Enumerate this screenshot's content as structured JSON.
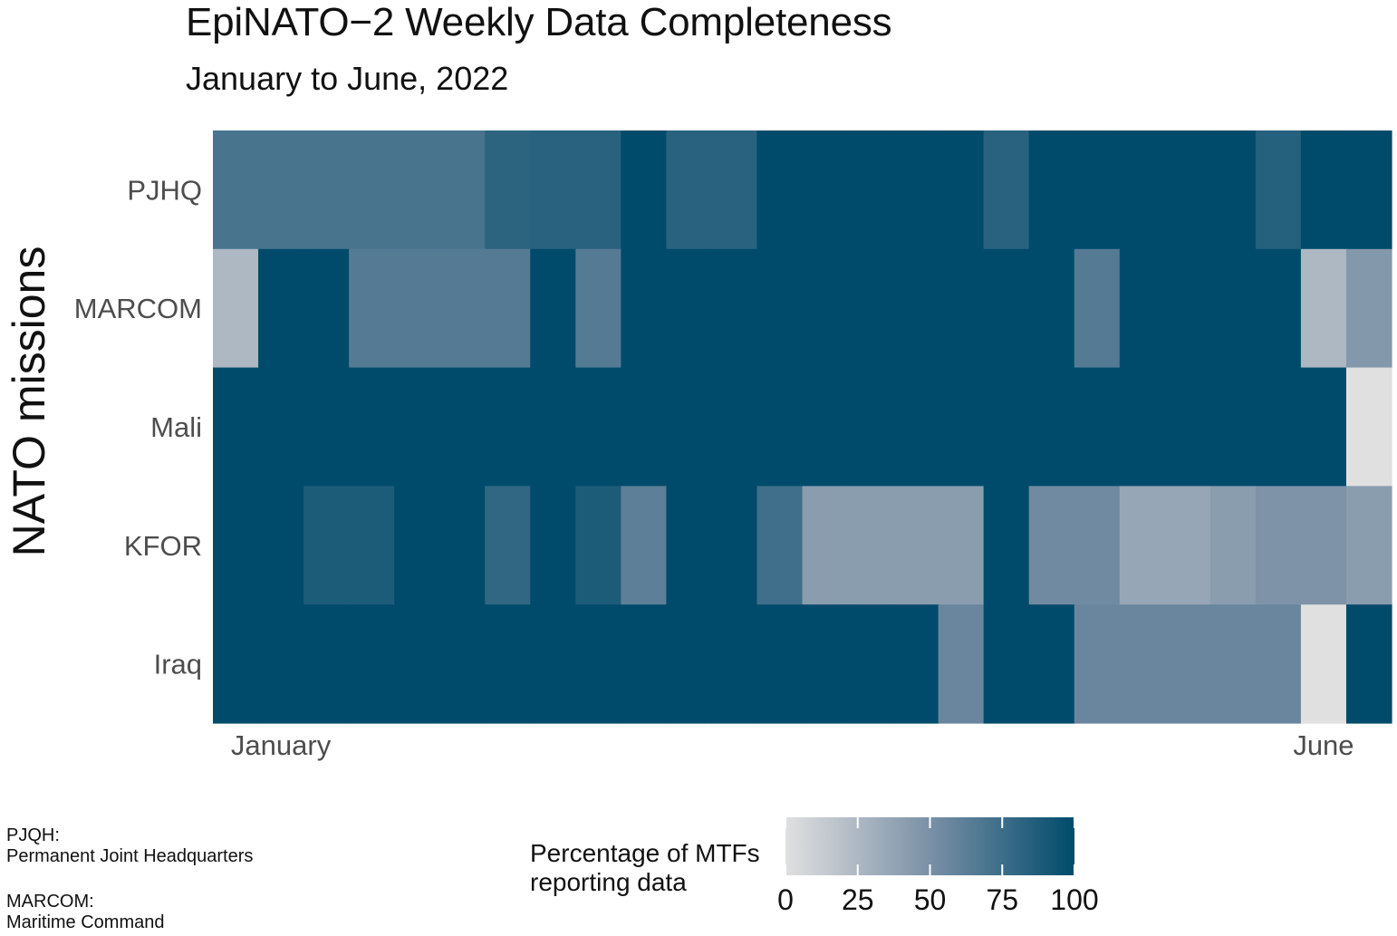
{
  "chart_data": {
    "type": "heatmap",
    "title": "EpiNATO−2 Weekly Data Completeness",
    "subtitle": "January to June, 2022",
    "xlabel": "",
    "ylabel": "NATO missions",
    "x_tick_labels": [
      {
        "label": "January",
        "week": 2
      },
      {
        "label": "June",
        "week": 25
      }
    ],
    "weeks": [
      1,
      2,
      3,
      4,
      5,
      6,
      7,
      8,
      9,
      10,
      11,
      12,
      13,
      14,
      15,
      16,
      17,
      18,
      19,
      20,
      21,
      22,
      23,
      24,
      25,
      26
    ],
    "rows": [
      "PJHQ",
      "MARCOM",
      "Mali",
      "KFOR",
      "Iraq"
    ],
    "values": [
      [
        70,
        70,
        70,
        70,
        70,
        70,
        82,
        83,
        83,
        100,
        83,
        83,
        100,
        100,
        100,
        100,
        100,
        83,
        100,
        100,
        100,
        100,
        100,
        85,
        100,
        100
      ],
      [
        25,
        100,
        100,
        65,
        65,
        65,
        65,
        100,
        65,
        100,
        100,
        100,
        100,
        100,
        100,
        100,
        100,
        100,
        100,
        65,
        100,
        100,
        100,
        100,
        25,
        45
      ],
      [
        100,
        100,
        100,
        100,
        100,
        100,
        100,
        100,
        100,
        100,
        100,
        100,
        100,
        100,
        100,
        100,
        100,
        100,
        100,
        100,
        100,
        100,
        100,
        100,
        100,
        0
      ],
      [
        100,
        100,
        88,
        88,
        100,
        100,
        80,
        100,
        88,
        62,
        100,
        100,
        74,
        42,
        42,
        42,
        42,
        100,
        54,
        54,
        36,
        36,
        42,
        48,
        48,
        42
      ],
      [
        100,
        100,
        100,
        100,
        100,
        100,
        100,
        100,
        100,
        100,
        100,
        100,
        100,
        100,
        100,
        100,
        57,
        100,
        100,
        57,
        57,
        57,
        57,
        57,
        0,
        100
      ]
    ],
    "colorscale": {
      "title": "Percentage of MTFs\nreporting data",
      "min": 0,
      "max": 100,
      "ticks": [
        0,
        25,
        50,
        75,
        100
      ],
      "low_color": "#E0E0E0",
      "mid_color": "#7A90A6",
      "high_color": "#004B6B"
    },
    "legend_position": "bottom-center",
    "grid": false
  },
  "footnotes": [
    {
      "abbr": "PJQH:",
      "full": "Permanent Joint Headquarters"
    },
    {
      "abbr": "MARCOM:",
      "full": "Maritime Command"
    }
  ]
}
